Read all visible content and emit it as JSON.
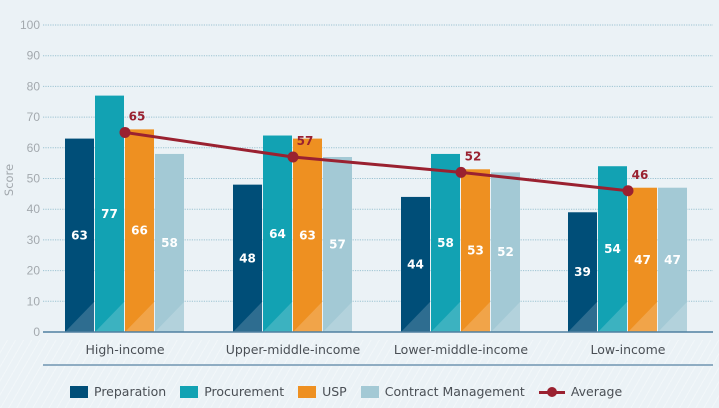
{
  "chart_data": {
    "type": "bar",
    "title": "",
    "xlabel": "",
    "ylabel": "Score",
    "ylim": [
      0,
      100
    ],
    "yticks": [
      0,
      10,
      20,
      30,
      40,
      50,
      60,
      70,
      80,
      90,
      100
    ],
    "grid": true,
    "legend_position": "bottom",
    "categories": [
      "High-income",
      "Upper-middle-income",
      "Lower-middle-income",
      "Low-income"
    ],
    "series": [
      {
        "name": "Preparation",
        "color": "#004e78",
        "values": [
          63,
          48,
          44,
          39
        ]
      },
      {
        "name": "Procurement",
        "color": "#12a2b3",
        "values": [
          77,
          64,
          58,
          54
        ]
      },
      {
        "name": "USP",
        "color": "#ee9021",
        "values": [
          66,
          63,
          53,
          47
        ]
      },
      {
        "name": "Contract Management",
        "color": "#a3c9d5",
        "values": [
          58,
          57,
          52,
          47
        ]
      }
    ],
    "line_series": {
      "name": "Average",
      "type": "line",
      "color": "#9a2130",
      "values": [
        65,
        57,
        52,
        46
      ]
    }
  }
}
